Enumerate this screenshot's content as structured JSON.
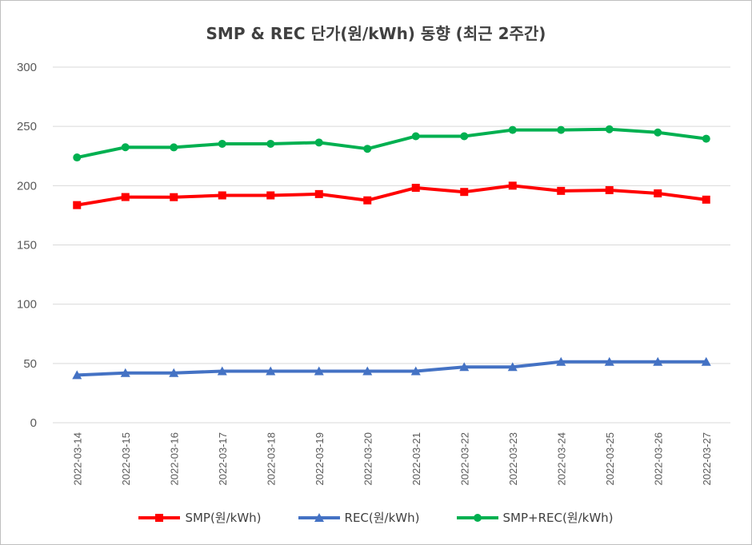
{
  "chart_data": {
    "type": "line",
    "title": "SMP & REC 단가(원/kWh) 동향 (최근 2주간)",
    "xlabel": "",
    "ylabel": "",
    "ylim": [
      0,
      300
    ],
    "yticks": [
      0,
      50,
      100,
      150,
      200,
      250,
      300
    ],
    "grid": true,
    "legend_position": "bottom",
    "categories": [
      "2022-03-14",
      "2022-03-15",
      "2022-03-16",
      "2022-03-17",
      "2022-03-18",
      "2022-03-19",
      "2022-03-20",
      "2022-03-21",
      "2022-03-22",
      "2022-03-23",
      "2022-03-24",
      "2022-03-25",
      "2022-03-26",
      "2022-03-27"
    ],
    "series": [
      {
        "name": "SMP(원/kWh)",
        "color": "#ff0000",
        "marker": "square",
        "values": [
          183.6,
          190.4,
          190.3,
          191.8,
          191.8,
          192.9,
          187.6,
          198.2,
          194.7,
          200.0,
          195.6,
          196.2,
          193.5,
          188.2
        ]
      },
      {
        "name": "REC(원/kWh)",
        "color": "#4472c4",
        "marker": "triangle",
        "values": [
          40.2,
          42.0,
          42.0,
          43.5,
          43.5,
          43.5,
          43.5,
          43.5,
          47.0,
          47.0,
          51.4,
          51.4,
          51.4,
          51.4
        ]
      },
      {
        "name": "SMP+REC(원/kWh)",
        "color": "#00b050",
        "marker": "circle",
        "values": [
          223.8,
          232.4,
          232.3,
          235.3,
          235.3,
          236.4,
          231.1,
          241.7,
          241.7,
          247.0,
          247.0,
          247.6,
          244.9,
          239.6
        ]
      }
    ]
  }
}
